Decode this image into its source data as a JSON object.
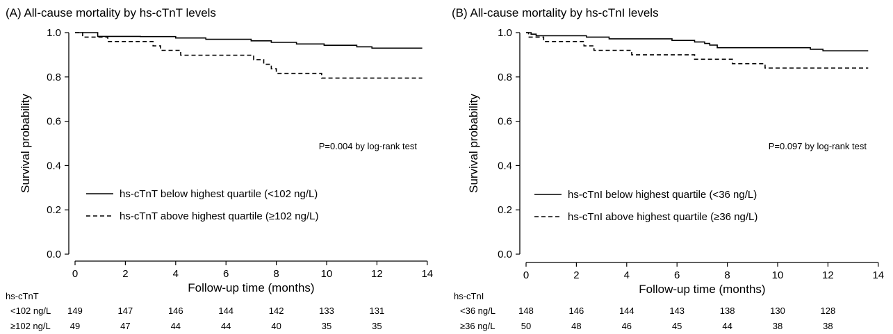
{
  "chart_data": [
    {
      "type": "line",
      "title": "(A) All-cause mortality by hs-cTnT levels",
      "xlabel": "Follow-up time (months)",
      "ylabel": "Survival probability",
      "xlim": [
        0,
        14
      ],
      "ylim": [
        0,
        1
      ],
      "xticks": [
        "0",
        "2",
        "4",
        "6",
        "8",
        "10",
        "12",
        "14"
      ],
      "yticks": [
        "0.0",
        "0.2",
        "0.4",
        "0.6",
        "0.8",
        "1.0"
      ],
      "annotation": "P=0.004 by log-rank test",
      "legend_position": "lower-left",
      "series": [
        {
          "name": "hs-cTnT below highest quartile (<102 ng/L)",
          "style": "solid",
          "x": [
            0,
            0.9,
            2.6,
            4.0,
            5.2,
            7.0,
            7.8,
            8.8,
            9.9,
            11.2,
            11.8,
            13.8
          ],
          "y": [
            1.0,
            0.983,
            0.982,
            0.976,
            0.97,
            0.963,
            0.956,
            0.949,
            0.943,
            0.936,
            0.93,
            0.93
          ]
        },
        {
          "name": "hs-cTnT above highest quartile (≥102 ng/L)",
          "style": "dashed",
          "x": [
            0,
            0.3,
            1.3,
            2.8,
            3.1,
            3.4,
            4.2,
            6.9,
            7.1,
            7.5,
            7.8,
            8.0,
            9.8,
            13.8
          ],
          "y": [
            1.0,
            0.98,
            0.96,
            0.96,
            0.94,
            0.92,
            0.898,
            0.898,
            0.878,
            0.857,
            0.837,
            0.816,
            0.795,
            0.795
          ]
        }
      ],
      "risk_table": {
        "header": "hs-cTnT",
        "times": [
          0,
          2,
          4,
          6,
          8,
          10,
          12
        ],
        "rows": [
          {
            "label": "<102 ng/L",
            "counts": [
              "149",
              "147",
              "146",
              "144",
              "142",
              "133",
              "131"
            ]
          },
          {
            "label": "≥102 ng/L",
            "counts": [
              "49",
              "47",
              "44",
              "44",
              "40",
              "35",
              "35"
            ]
          }
        ]
      }
    },
    {
      "type": "line",
      "title": "(B) All-cause mortality by hs-cTnI levels",
      "xlabel": "Follow-up time (months)",
      "ylabel": "Survival probability",
      "xlim": [
        0,
        14
      ],
      "ylim": [
        0,
        1
      ],
      "xticks": [
        "0",
        "2",
        "4",
        "6",
        "8",
        "10",
        "12",
        "14"
      ],
      "yticks": [
        "0.0",
        "0.2",
        "0.4",
        "0.6",
        "0.8",
        "1.0"
      ],
      "annotation": "P=0.097 by log-rank test",
      "legend_position": "lower-left",
      "series": [
        {
          "name": "hs-cTnI below highest quartile (<36 ng/L)",
          "style": "solid",
          "x": [
            0,
            0.2,
            0.4,
            2.4,
            3.3,
            5.8,
            6.7,
            7.1,
            7.3,
            7.6,
            10.4,
            11.3,
            11.8,
            13.6
          ],
          "y": [
            1.0,
            0.993,
            0.986,
            0.98,
            0.972,
            0.965,
            0.958,
            0.951,
            0.944,
            0.932,
            0.932,
            0.925,
            0.918,
            0.918
          ]
        },
        {
          "name": "hs-cTnI above highest quartile (≥36 ng/L)",
          "style": "dashed",
          "x": [
            0,
            0.1,
            0.7,
            2.3,
            2.7,
            4.2,
            6.7,
            8.2,
            9.5,
            13.6
          ],
          "y": [
            1.0,
            0.98,
            0.96,
            0.94,
            0.92,
            0.9,
            0.88,
            0.86,
            0.84,
            0.84
          ]
        }
      ],
      "risk_table": {
        "header": "hs-cTnI",
        "times": [
          0,
          2,
          4,
          6,
          8,
          10,
          12
        ],
        "rows": [
          {
            "label": "<36 ng/L",
            "counts": [
              "148",
              "146",
              "144",
              "143",
              "138",
              "130",
              "128"
            ]
          },
          {
            "label": "≥36 ng/L",
            "counts": [
              "50",
              "48",
              "46",
              "45",
              "44",
              "38",
              "38"
            ]
          }
        ]
      }
    }
  ]
}
